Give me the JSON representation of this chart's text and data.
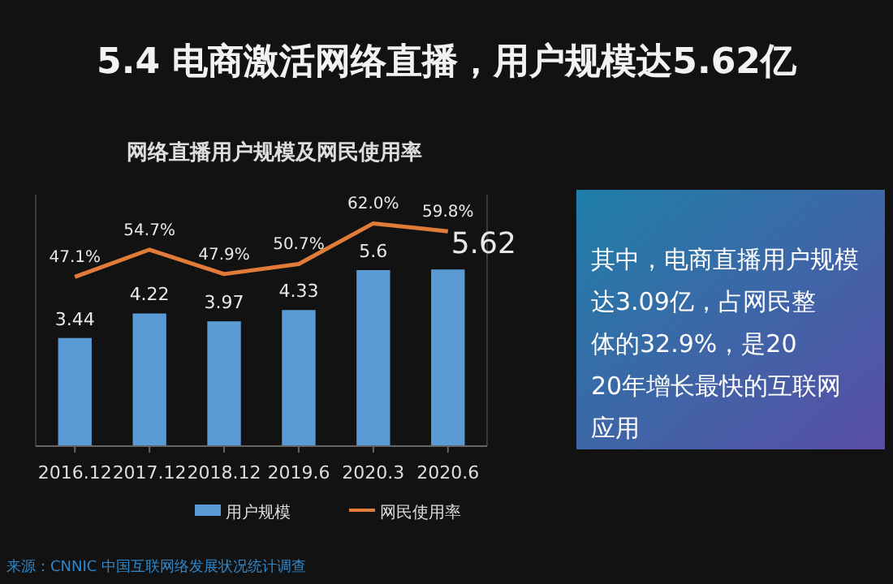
{
  "chart_data": {
    "type": "bar",
    "title": "5.4 电商激活网络直播，用户规模达5.62亿",
    "subtitle": "网络直播用户规模及网民使用率",
    "categories": [
      "2016.12",
      "2017.12",
      "2018.12",
      "2019.6",
      "2020.3",
      "2020.6"
    ],
    "series": [
      {
        "name": "用户规模",
        "color": "#5b9bd5",
        "values": [
          3.44,
          4.22,
          3.97,
          4.33,
          5.6,
          5.62
        ],
        "value_labels": [
          "3.44",
          "4.22",
          "3.97",
          "4.33",
          "5.6",
          "5.62"
        ]
      },
      {
        "name": "网民使用率",
        "type": "line",
        "axis": "y2",
        "color": "#e07b39",
        "values": [
          47.1,
          54.7,
          47.9,
          50.7,
          62.0,
          59.8
        ],
        "value_labels": [
          "47.1%",
          "54.7%",
          "47.9%",
          "50.7%",
          "62.0%",
          "59.8%"
        ]
      }
    ],
    "ylim": [
      0,
      8
    ],
    "y2lim": [
      0,
      70
    ],
    "legend": "bottom",
    "marker": "none",
    "grid": false,
    "annotations": [
      "其中，电商直播用户规模达3.09亿，占网民整体的32.9%，是2020年增长最快的互联网应用",
      "来源：CNNIC 中国互联网络发展状况统计调查"
    ]
  }
}
